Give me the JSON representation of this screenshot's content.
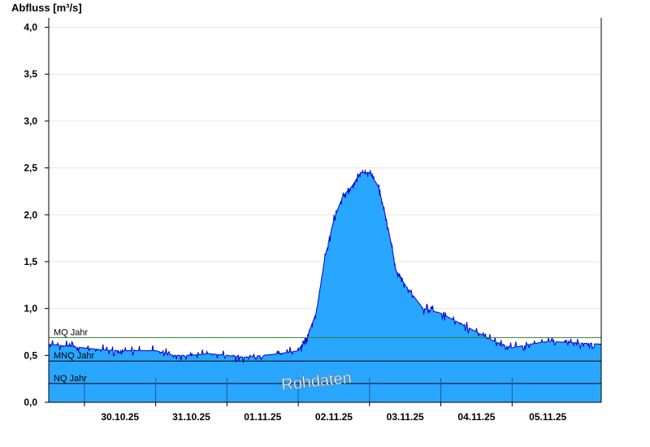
{
  "chart_data": {
    "type": "area",
    "title": "",
    "ylabel": "Abfluss [m³/s]",
    "xlabel": "",
    "ylim": [
      0,
      4.1
    ],
    "yticks": [
      0,
      0.5,
      1.0,
      1.5,
      2.0,
      2.5,
      3.0,
      3.5,
      4.0
    ],
    "ytick_labels": [
      "0,0",
      "0,5",
      "1,0",
      "1,5",
      "2,0",
      "2,5",
      "3,0",
      "3,5",
      "4,0"
    ],
    "x_range_days": [
      "29.10.25 12:00",
      "06.11.25 06:00"
    ],
    "x_day_boundaries": [
      "30.10.25",
      "31.10.25",
      "01.11.25",
      "02.11.25",
      "03.11.25",
      "04.11.25",
      "05.11.25"
    ],
    "x_tick_labels": [
      "30.10.25",
      "31.10.25",
      "01.11.25",
      "02.11.25",
      "03.11.25",
      "04.11.25",
      "05.11.25"
    ],
    "grid": true,
    "colors": {
      "fill": "#29a6ff",
      "line": "#0000cc",
      "mq_line": "#2e7d32",
      "ref_line": "#000000",
      "grid": "#e6e6e6"
    },
    "reference_lines": [
      {
        "label": "MQ Jahr",
        "value": 0.69
      },
      {
        "label": "MNQ Jahr",
        "value": 0.44
      },
      {
        "label": "NQ Jahr",
        "value": 0.2
      }
    ],
    "watermark": "Rohdaten",
    "series": [
      {
        "x": [
          "29.10.25 12:00",
          "29.10.25 18:00",
          "30.10.25 00:00",
          "30.10.25 06:00",
          "30.10.25 12:00",
          "30.10.25 18:00",
          "31.10.25 00:00",
          "31.10.25 06:00",
          "31.10.25 12:00",
          "31.10.25 18:00",
          "01.11.25 00:00",
          "01.11.25 06:00",
          "01.11.25 12:00",
          "01.11.25 18:00",
          "02.11.25 00:00",
          "02.11.25 03:00",
          "02.11.25 06:00",
          "02.11.25 09:00",
          "02.11.25 12:00",
          "02.11.25 15:00",
          "02.11.25 18:00",
          "02.11.25 21:00",
          "03.11.25 00:00",
          "03.11.25 03:00",
          "03.11.25 06:00",
          "03.11.25 09:00",
          "03.11.25 12:00",
          "03.11.25 18:00",
          "04.11.25 00:00",
          "04.11.25 06:00",
          "04.11.25 12:00",
          "04.11.25 18:00",
          "05.11.25 00:00",
          "05.11.25 06:00",
          "05.11.25 12:00",
          "05.11.25 18:00",
          "06.11.25 00:00",
          "06.11.25 06:00"
        ],
        "values": [
          0.62,
          0.6,
          0.58,
          0.56,
          0.55,
          0.55,
          0.55,
          0.5,
          0.5,
          0.52,
          0.5,
          0.48,
          0.5,
          0.52,
          0.55,
          0.7,
          0.95,
          1.55,
          1.95,
          2.2,
          2.3,
          2.45,
          2.45,
          2.3,
          1.9,
          1.4,
          1.25,
          1.0,
          0.95,
          0.85,
          0.75,
          0.65,
          0.58,
          0.62,
          0.65,
          0.64,
          0.63,
          0.62
        ]
      }
    ]
  }
}
